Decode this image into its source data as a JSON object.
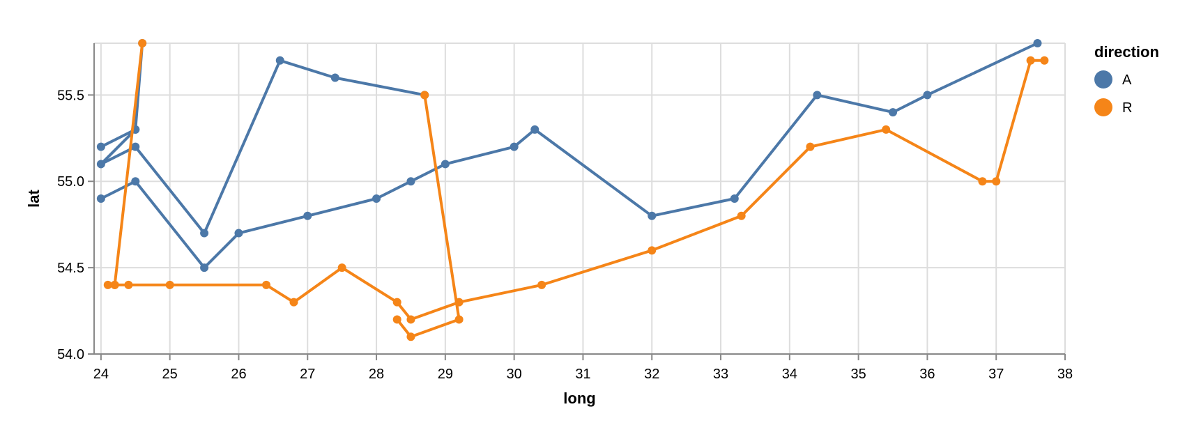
{
  "chart_data": {
    "type": "line",
    "xlabel": "long",
    "ylabel": "lat",
    "xlim": [
      23.9,
      38.0
    ],
    "ylim": [
      54.0,
      55.8
    ],
    "xticks": [
      24,
      25,
      26,
      27,
      28,
      29,
      30,
      31,
      32,
      33,
      34,
      35,
      36,
      37,
      38
    ],
    "yticks": [
      "54.0",
      "54.5",
      "55.0",
      "55.5"
    ],
    "grid": true,
    "legend": {
      "title": "direction",
      "placement": "right"
    },
    "series": [
      {
        "name": "A",
        "color": "#4c78a8",
        "points": [
          [
            24.0,
            55.2
          ],
          [
            24.5,
            55.3
          ],
          [
            24.6,
            55.8
          ],
          [
            24.5,
            55.3
          ],
          [
            24.0,
            55.1
          ],
          [
            24.5,
            55.2
          ],
          [
            25.5,
            54.7
          ],
          [
            26.6,
            55.7
          ],
          [
            27.4,
            55.6
          ],
          [
            28.7,
            55.5
          ]
        ]
      },
      {
        "name": "A",
        "color": "#4c78a8",
        "points": [
          [
            24.0,
            54.9
          ],
          [
            24.5,
            55.0
          ],
          [
            25.5,
            54.5
          ],
          [
            26.0,
            54.7
          ],
          [
            27.0,
            54.8
          ],
          [
            28.0,
            54.9
          ],
          [
            28.5,
            55.0
          ],
          [
            29.0,
            55.1
          ],
          [
            30.0,
            55.2
          ],
          [
            30.3,
            55.3
          ],
          [
            32.0,
            54.8
          ],
          [
            33.2,
            54.9
          ],
          [
            34.4,
            55.5
          ],
          [
            35.5,
            55.4
          ],
          [
            36.0,
            55.5
          ],
          [
            37.6,
            55.8
          ]
        ]
      },
      {
        "name": "R",
        "color": "#f58518",
        "points": [
          [
            24.6,
            55.8
          ],
          [
            24.2,
            54.4
          ],
          [
            24.1,
            54.4
          ],
          [
            24.2,
            54.4
          ],
          [
            24.4,
            54.4
          ],
          [
            25.0,
            54.4
          ],
          [
            26.4,
            54.4
          ],
          [
            26.8,
            54.3
          ],
          [
            27.5,
            54.5
          ],
          [
            28.3,
            54.3
          ],
          [
            28.5,
            54.2
          ],
          [
            29.2,
            54.3
          ],
          [
            30.4,
            54.4
          ],
          [
            32.0,
            54.6
          ],
          [
            33.3,
            54.8
          ],
          [
            34.3,
            55.2
          ],
          [
            35.4,
            55.3
          ],
          [
            36.8,
            55.0
          ],
          [
            37.0,
            55.0
          ],
          [
            37.5,
            55.7
          ],
          [
            37.7,
            55.7
          ]
        ]
      },
      {
        "name": "R",
        "color": "#f58518",
        "points": [
          [
            28.7,
            55.5
          ],
          [
            29.2,
            54.2
          ],
          [
            28.5,
            54.1
          ],
          [
            28.3,
            54.2
          ]
        ]
      }
    ],
    "legend_entries": [
      {
        "label": "A",
        "color": "#4c78a8"
      },
      {
        "label": "R",
        "color": "#f58518"
      }
    ]
  }
}
